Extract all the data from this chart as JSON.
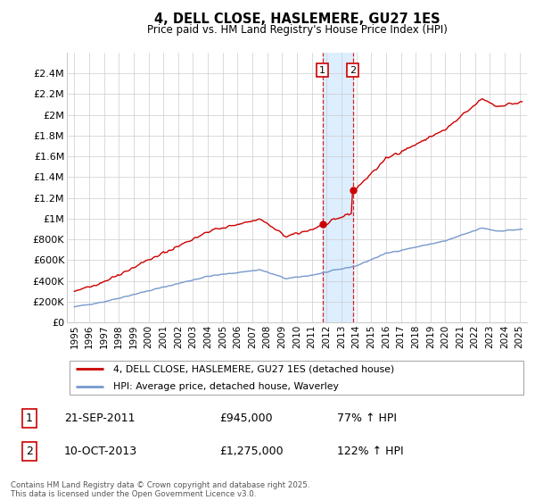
{
  "title": "4, DELL CLOSE, HASLEMERE, GU27 1ES",
  "subtitle": "Price paid vs. HM Land Registry's House Price Index (HPI)",
  "legend_line1": "4, DELL CLOSE, HASLEMERE, GU27 1ES (detached house)",
  "legend_line2": "HPI: Average price, detached house, Waverley",
  "sale1_date_num": 2011.72,
  "sale1_price": 945000,
  "sale1_text": "21-SEP-2011",
  "sale1_price_text": "£945,000",
  "sale1_hpi_text": "77% ↑ HPI",
  "sale2_date_num": 2013.77,
  "sale2_price": 1275000,
  "sale2_text": "10-OCT-2013",
  "sale2_price_text": "£1,275,000",
  "sale2_hpi_text": "122% ↑ HPI",
  "footer": "Contains HM Land Registry data © Crown copyright and database right 2025.\nThis data is licensed under the Open Government Licence v3.0.",
  "red_color": "#cc0000",
  "blue_color": "#7799cc",
  "shade_color": "#ddeeff",
  "ylim": [
    0,
    2600000
  ],
  "xlim": [
    1994.5,
    2025.5
  ],
  "yticks": [
    0,
    200000,
    400000,
    600000,
    800000,
    1000000,
    1200000,
    1400000,
    1600000,
    1800000,
    2000000,
    2200000,
    2400000
  ],
  "ytick_labels": [
    "£0",
    "£200K",
    "£400K",
    "£600K",
    "£800K",
    "£1M",
    "£1.2M",
    "£1.4M",
    "£1.6M",
    "£1.8M",
    "£2M",
    "£2.2M",
    "£2.4M"
  ],
  "bg_color": "#ffffff",
  "grid_color": "#cccccc"
}
